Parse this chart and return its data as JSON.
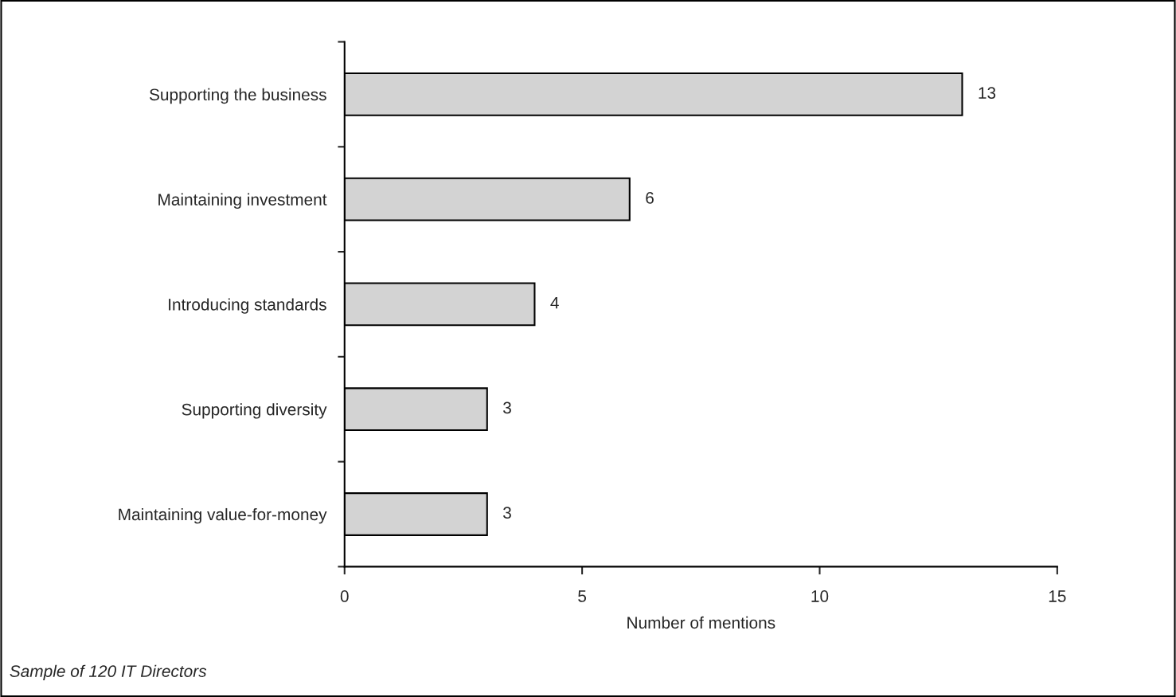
{
  "chart_data": {
    "type": "bar",
    "orientation": "horizontal",
    "xlabel": "Number of mentions",
    "categories": [
      "Supporting the business",
      "Maintaining investment",
      "Introducing standards",
      "Supporting diversity",
      "Maintaining value-for-money"
    ],
    "values": [
      13,
      6,
      4,
      3,
      3
    ],
    "color": "#d3d3d3",
    "xlim": [
      0,
      15
    ],
    "xticks": [
      0,
      5,
      10,
      15
    ],
    "grid": false,
    "data_labels": true,
    "annotations": [
      "Sample of 120 IT Directors"
    ]
  }
}
